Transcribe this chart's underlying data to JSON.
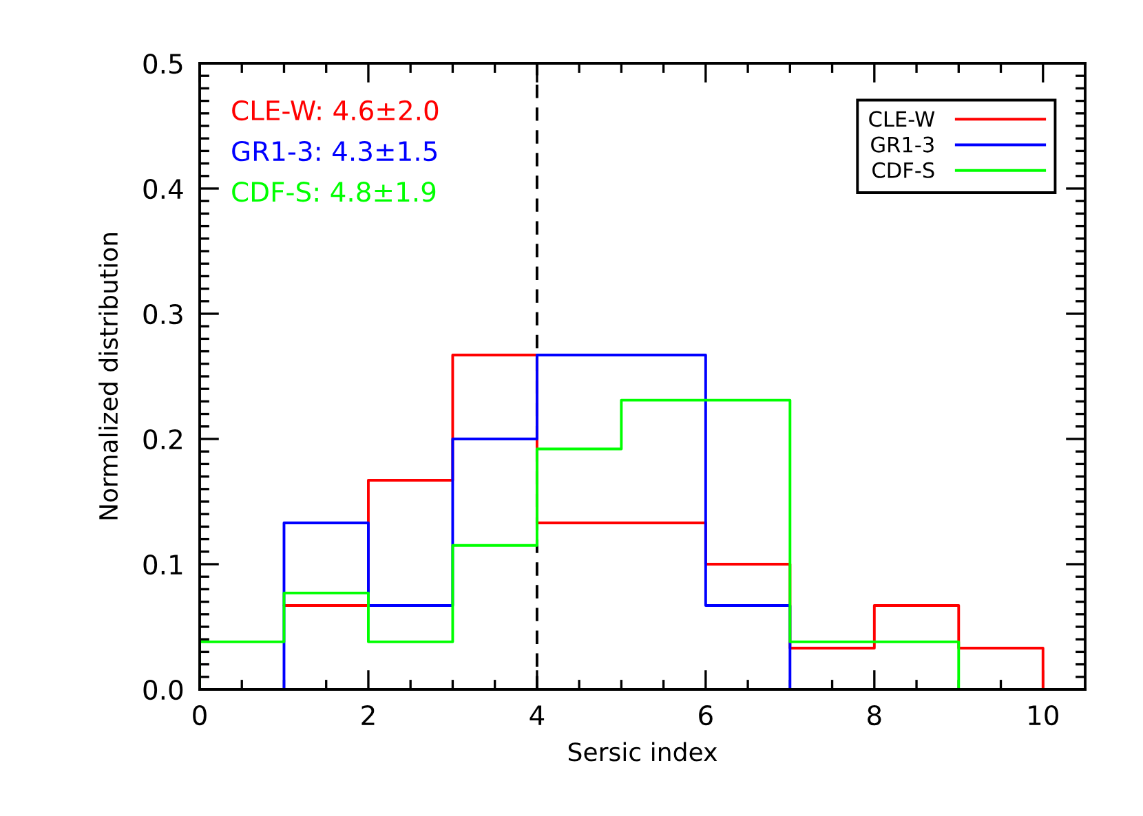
{
  "chart_data": {
    "type": "step",
    "xlabel": "Sersic index",
    "ylabel": "Normalized distribution",
    "annotations": [
      "CLE-W: 4.6±2.0",
      "GR1-3: 4.3±1.5",
      "CDF-S: 4.8±1.9"
    ],
    "series": [
      {
        "name": "CLE-W",
        "color": "#ff0000",
        "x": [
          1,
          2,
          3,
          4,
          5,
          6,
          7,
          8,
          9,
          10,
          10.5
        ],
        "values": [
          0.067,
          0.167,
          0.267,
          0.133,
          0.133,
          0.1,
          0.033,
          0.067,
          0.033,
          0,
          0
        ]
      },
      {
        "name": "GR1-3",
        "color": "#0000ff",
        "x": [
          0.5,
          1,
          2,
          3,
          4,
          5,
          6,
          7,
          7.5
        ],
        "values": [
          0,
          0.133,
          0.067,
          0.2,
          0.267,
          0.267,
          0.067,
          0,
          0
        ]
      },
      {
        "name": "CDF-S",
        "color": "#00ff00",
        "x": [
          0,
          0,
          1,
          2,
          3,
          4,
          5,
          6,
          7,
          8,
          9,
          9.5
        ],
        "values": [
          0,
          0.038,
          0.077,
          0.038,
          0.115,
          0.192,
          0.231,
          0.231,
          0.038,
          0.038,
          0,
          0
        ]
      }
    ],
    "xlim": [
      0,
      10.5
    ],
    "ylim": [
      0,
      0.5
    ],
    "xticks": [
      0,
      {
        "value": 0.5,
        "label": null
      },
      {
        "value": 1,
        "label": null
      },
      {
        "value": 1.5,
        "label": null
      },
      2,
      {
        "value": 2.5,
        "label": null
      },
      {
        "value": 3,
        "label": null
      },
      {
        "value": 3.5,
        "label": null
      },
      4,
      {
        "value": 4.5,
        "label": null
      },
      {
        "value": 5,
        "label": null
      },
      {
        "value": 5.5,
        "label": null
      },
      6,
      {
        "value": 6.5,
        "label": null
      },
      {
        "value": 7,
        "label": null
      },
      {
        "value": 7.5,
        "label": null
      },
      8,
      {
        "value": 8.5,
        "label": null
      },
      {
        "value": 9,
        "label": null
      },
      {
        "value": 9.5,
        "label": null
      },
      10
    ],
    "yticks": [
      {
        "value": 0,
        "label": "0.0"
      },
      {
        "value": 0.01,
        "label": null
      },
      {
        "value": 0.02,
        "label": null
      },
      {
        "value": 0.03,
        "label": null
      },
      {
        "value": 0.04,
        "label": null
      },
      {
        "value": 0.05,
        "label": null
      },
      {
        "value": 0.06,
        "label": null
      },
      {
        "value": 0.07,
        "label": null
      },
      {
        "value": 0.08,
        "label": null
      },
      {
        "value": 0.09,
        "label": null
      },
      0.1,
      {
        "value": 0.11,
        "label": null
      },
      {
        "value": 0.12,
        "label": null
      },
      {
        "value": 0.13,
        "label": null
      },
      {
        "value": 0.14,
        "label": null
      },
      {
        "value": 0.15,
        "label": null
      },
      {
        "value": 0.16,
        "label": null
      },
      {
        "value": 0.17,
        "label": null
      },
      {
        "value": 0.18,
        "label": null
      },
      {
        "value": 0.19,
        "label": null
      },
      0.2,
      {
        "value": 0.21,
        "label": null
      },
      {
        "value": 0.22,
        "label": null
      },
      {
        "value": 0.23,
        "label": null
      },
      {
        "value": 0.24,
        "label": null
      },
      {
        "value": 0.25,
        "label": null
      },
      {
        "value": 0.26,
        "label": null
      },
      {
        "value": 0.27,
        "label": null
      },
      {
        "value": 0.28,
        "label": null
      },
      {
        "value": 0.29,
        "label": null
      },
      0.3,
      {
        "value": 0.31,
        "label": null
      },
      {
        "value": 0.32,
        "label": null
      },
      {
        "value": 0.33,
        "label": null
      },
      {
        "value": 0.34,
        "label": null
      },
      {
        "value": 0.35,
        "label": null
      },
      {
        "value": 0.36,
        "label": null
      },
      {
        "value": 0.37,
        "label": null
      },
      {
        "value": 0.38,
        "label": null
      },
      {
        "value": 0.39,
        "label": null
      },
      0.4,
      {
        "value": 0.41,
        "label": null
      },
      {
        "value": 0.42,
        "label": null
      },
      {
        "value": 0.43,
        "label": null
      },
      {
        "value": 0.44,
        "label": null
      },
      {
        "value": 0.45,
        "label": null
      },
      {
        "value": 0.46,
        "label": null
      },
      {
        "value": 0.47,
        "label": null
      },
      {
        "value": 0.48,
        "label": null
      },
      {
        "value": 0.49,
        "label": null
      },
      0.5
    ],
    "ref_lines": [
      {
        "axis": "x",
        "value": 4,
        "color": "#000000",
        "line_style": "dashed"
      }
    ],
    "legend": "top right"
  }
}
